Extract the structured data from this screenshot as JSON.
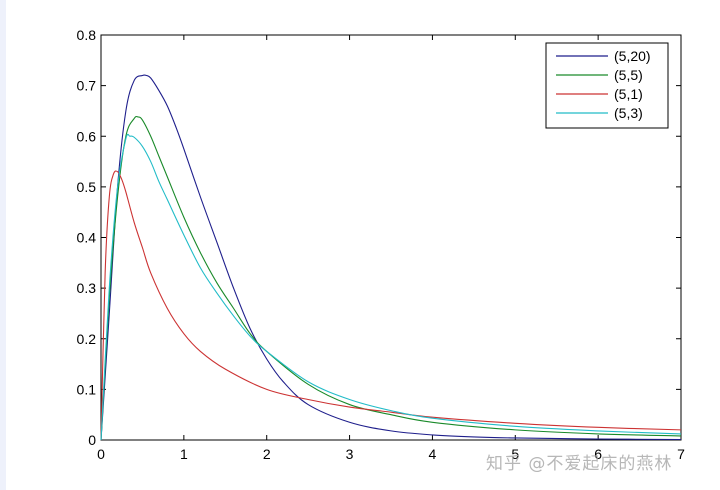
{
  "chart_data": {
    "type": "line",
    "title": "",
    "xlabel": "",
    "ylabel": "",
    "xlim": [
      0,
      7
    ],
    "ylim": [
      0,
      0.8
    ],
    "xticks": [
      "0",
      "1",
      "2",
      "3",
      "4",
      "5",
      "6",
      "7"
    ],
    "yticks": [
      "0",
      "0.1",
      "0.2",
      "0.3",
      "0.4",
      "0.5",
      "0.6",
      "0.7",
      "0.8"
    ],
    "grid": false,
    "legend_position": "top-right",
    "series": [
      {
        "name": "(5,20)",
        "color": "#1f1f8c",
        "x": [
          0,
          0.1,
          0.2,
          0.3,
          0.4,
          0.5,
          0.55,
          0.6,
          0.7,
          0.8,
          0.9,
          1.0,
          1.2,
          1.4,
          1.6,
          1.8,
          2.0,
          2.2,
          2.5,
          3.0,
          3.5,
          4.0,
          4.5,
          5.0,
          6.0,
          7.0
        ],
        "values": [
          0,
          0.25,
          0.5,
          0.65,
          0.71,
          0.72,
          0.72,
          0.715,
          0.69,
          0.66,
          0.62,
          0.575,
          0.48,
          0.39,
          0.3,
          0.22,
          0.16,
          0.115,
          0.07,
          0.035,
          0.018,
          0.01,
          0.006,
          0.004,
          0.002,
          0.001
        ]
      },
      {
        "name": "(5,5)",
        "color": "#1a8a2a",
        "x": [
          0,
          0.1,
          0.2,
          0.3,
          0.4,
          0.45,
          0.5,
          0.6,
          0.7,
          0.8,
          1.0,
          1.2,
          1.4,
          1.6,
          1.8,
          2.0,
          2.5,
          3.0,
          3.5,
          4.0,
          5.0,
          6.0,
          7.0
        ],
        "values": [
          0,
          0.28,
          0.48,
          0.6,
          0.635,
          0.638,
          0.632,
          0.6,
          0.56,
          0.52,
          0.44,
          0.37,
          0.31,
          0.26,
          0.21,
          0.175,
          0.11,
          0.07,
          0.05,
          0.035,
          0.02,
          0.012,
          0.008
        ]
      },
      {
        "name": "(5,1)",
        "color": "#cc3333",
        "x": [
          0,
          0.05,
          0.1,
          0.15,
          0.2,
          0.25,
          0.3,
          0.4,
          0.5,
          0.6,
          0.8,
          1.0,
          1.2,
          1.5,
          2.0,
          2.5,
          3.0,
          3.5,
          4.0,
          5.0,
          6.0,
          7.0
        ],
        "values": [
          0,
          0.33,
          0.48,
          0.525,
          0.53,
          0.515,
          0.49,
          0.43,
          0.38,
          0.33,
          0.26,
          0.21,
          0.175,
          0.14,
          0.1,
          0.08,
          0.065,
          0.055,
          0.045,
          0.033,
          0.025,
          0.02
        ]
      },
      {
        "name": "(5,3)",
        "color": "#22bcc8",
        "x": [
          0,
          0.1,
          0.2,
          0.3,
          0.35,
          0.4,
          0.5,
          0.6,
          0.7,
          0.8,
          1.0,
          1.2,
          1.4,
          1.6,
          1.8,
          2.0,
          2.5,
          3.0,
          3.5,
          4.0,
          5.0,
          6.0,
          7.0
        ],
        "values": [
          0,
          0.3,
          0.5,
          0.595,
          0.6,
          0.598,
          0.58,
          0.55,
          0.51,
          0.475,
          0.405,
          0.34,
          0.29,
          0.245,
          0.205,
          0.175,
          0.115,
          0.08,
          0.058,
          0.043,
          0.027,
          0.018,
          0.012
        ]
      }
    ]
  },
  "watermark": "知乎 @不爱起床的燕林"
}
